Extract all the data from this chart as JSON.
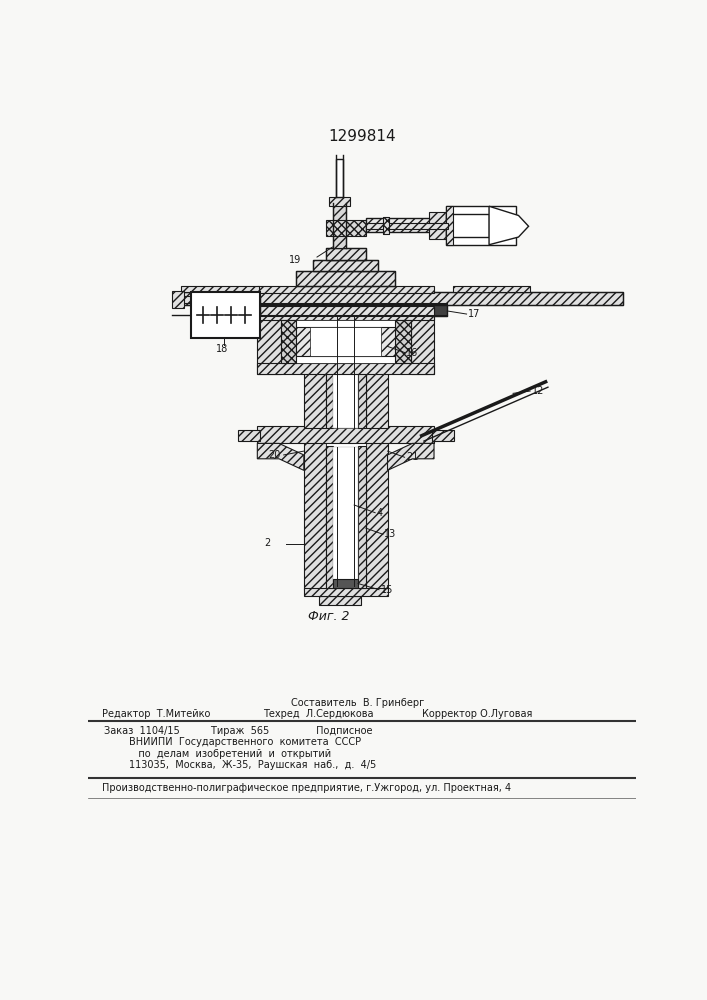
{
  "patent_number": "1299814",
  "fig_label": "Фиг. 2",
  "bg_color": "#f8f8f6",
  "line_color": "#1a1a1a",
  "hatch_color": "#cccccc",
  "title_fontsize": 11,
  "small_fontsize": 7.0,
  "footer_sestavitel": "Составитель  В. Гринберг",
  "footer_redaktor": "Редактор  Т.Митейко",
  "footer_tehred": "Техред  Л.Сердюкова",
  "footer_korrektor": "Корректор О.Луговая",
  "info_block": [
    "Заказ  1104/15          Тираж  565               Подписное",
    "        ВНИИПИ  Государственного  комитета  СССР",
    "           по  делам  изобретений  и  открытий",
    "        113035,  Москва,  Ж-35,  Раушская  наб.,  д.  4/5"
  ],
  "production_line": "Производственно-полиграфическое предприятие, г.Ужгород, ул. Проектная, 4"
}
